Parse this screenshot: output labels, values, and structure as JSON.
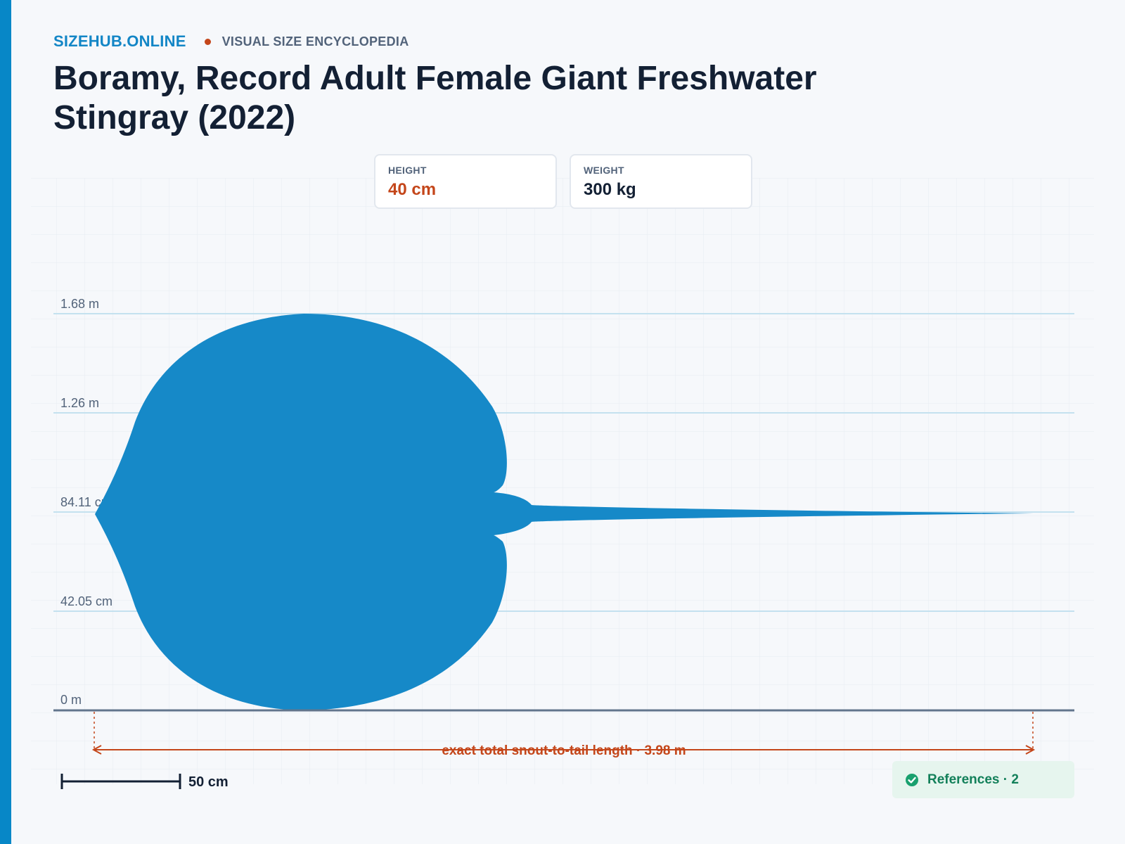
{
  "header": {
    "brand": "SIZEHUB.ONLINE",
    "tagline": "VISUAL SIZE ENCYCLOPEDIA",
    "title": "Boramy, Record Adult Female Giant Freshwater Stingray (2022)"
  },
  "stats": {
    "height_label": "HEIGHT",
    "height_value": "40 cm",
    "weight_label": "WEIGHT",
    "weight_value": "300 kg"
  },
  "scale_lines": [
    {
      "label": "1.68 m"
    },
    {
      "label": "1.26 m"
    },
    {
      "label": "84.11 cm"
    },
    {
      "label": "42.05 cm"
    },
    {
      "label": "0 m"
    }
  ],
  "length_annotation": "exact total snout-to-tail length · 3.98 m",
  "scale_bar_label": "50 cm",
  "references": {
    "label": "References · 2",
    "icon": "check-circle-icon"
  },
  "colors": {
    "accent": "#0787c7",
    "silhouette": "#1689c8",
    "highlight": "#c4461a",
    "success": "#13805a"
  }
}
